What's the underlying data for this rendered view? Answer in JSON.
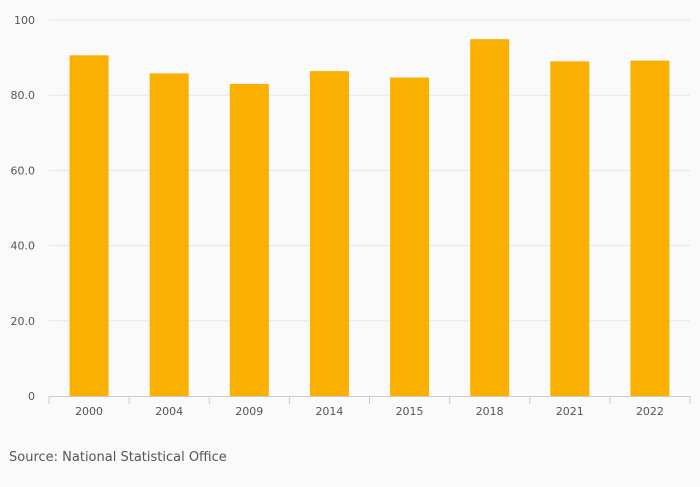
{
  "chart_data": {
    "type": "bar",
    "categories": [
      "2000",
      "2004",
      "2009",
      "2014",
      "2015",
      "2018",
      "2021",
      "2022"
    ],
    "values": [
      90.6,
      85.8,
      83.0,
      86.4,
      84.7,
      94.9,
      89.0,
      89.2
    ],
    "ylim": [
      0,
      100
    ],
    "yticks": [
      0,
      20,
      40,
      60,
      80,
      100
    ],
    "ytick_labels": [
      "0",
      "20.0",
      "40.0",
      "60.0",
      "80.0",
      "100"
    ],
    "grid": true,
    "bar_color": "#f9b000",
    "title": "",
    "xlabel": "",
    "ylabel": ""
  },
  "source": "Source: National Statistical Office"
}
